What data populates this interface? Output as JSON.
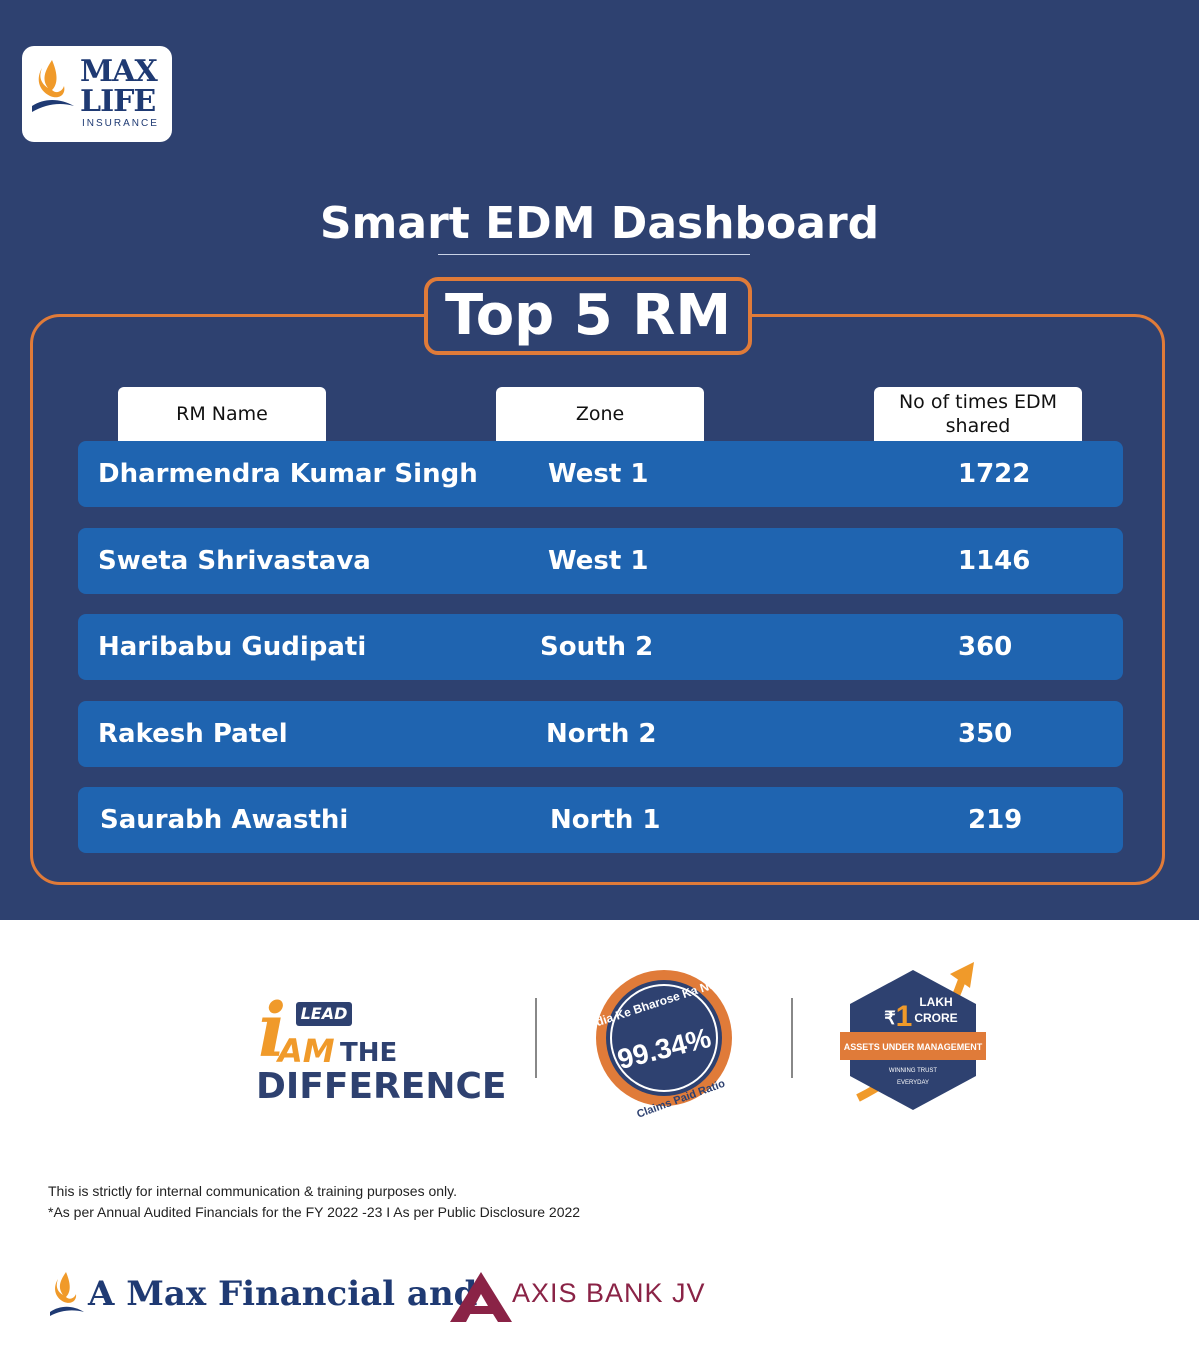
{
  "brand": {
    "logo_line1": "MAX",
    "logo_line2": "LIFE",
    "logo_line3": "INSURANCE",
    "primary_color": "#2e4170",
    "accent_color": "#e07b39",
    "row_color": "#1f64b0"
  },
  "dashboard": {
    "title": "Smart EDM Dashboard",
    "subtitle": "Top 5 RM"
  },
  "table": {
    "headers": {
      "name": "RM Name",
      "zone": "Zone",
      "count": "No of times EDM shared"
    },
    "rows": [
      {
        "name": "Dharmendra Kumar Singh",
        "zone": "West 1",
        "count": "1722"
      },
      {
        "name": "Sweta Shrivastava",
        "zone": "West 1",
        "count": "1146"
      },
      {
        "name": "Haribabu Gudipati",
        "zone": "South 2",
        "count": "360"
      },
      {
        "name": "Rakesh Patel",
        "zone": "North 2",
        "count": "350"
      },
      {
        "name": "Saurabh Awasthi",
        "zone": "North 1",
        "count": "219"
      }
    ]
  },
  "badges": {
    "lead_i": "i",
    "lead_tag": "LEAD",
    "lead_am": "AM",
    "lead_the": "THE",
    "lead_difference": "DIFFERENCE",
    "claims_top": "India Ke Bharose Ka Number",
    "claims_value": "99.34%",
    "claims_bottom": "Claims Paid Ratio",
    "aum_lakh": "LAKH",
    "aum_crore": "CRORE",
    "aum_number": "1",
    "aum_symbol": "₹",
    "aum_banner": "ASSETS UNDER MANAGEMENT",
    "aum_tag1": "WINNING TRUST",
    "aum_tag2": "EVERYDAY"
  },
  "footer": {
    "disclaimer1": "This is strictly for internal communication & training purposes only.",
    "disclaimer2": "*As per Annual Audited Financials for the FY 2022 -23 I As per Public Disclosure 2022",
    "jv_text": "A Max Financial and",
    "axis_text": "AXIS BANK JV"
  }
}
